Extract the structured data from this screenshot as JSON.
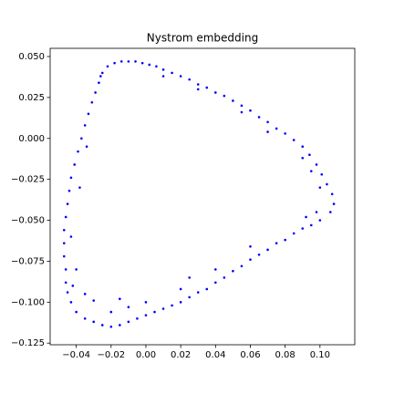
{
  "chart_data": {
    "type": "scatter",
    "title": "Nystrom embedding",
    "color": "#0000ff",
    "xlim": [
      -0.055,
      0.12
    ],
    "ylim": [
      -0.126,
      0.055
    ],
    "xticks": [
      {
        "value": -0.04,
        "label": "−0.04"
      },
      {
        "value": -0.02,
        "label": "−0.02"
      },
      {
        "value": 0,
        "label": "0.00"
      },
      {
        "value": 0.02,
        "label": "0.02"
      },
      {
        "value": 0.04,
        "label": "0.04"
      },
      {
        "value": 0.06,
        "label": "0.06"
      },
      {
        "value": 0.08,
        "label": "0.08"
      },
      {
        "value": 0.1,
        "label": "0.10"
      }
    ],
    "yticks": [
      {
        "value": 0.05,
        "label": "0.050"
      },
      {
        "value": 0.025,
        "label": "0.025"
      },
      {
        "value": 0,
        "label": "0.000"
      },
      {
        "value": -0.025,
        "label": "−0.025"
      },
      {
        "value": -0.05,
        "label": "−0.050"
      },
      {
        "value": -0.075,
        "label": "−0.075"
      },
      {
        "value": -0.1,
        "label": "−0.100"
      },
      {
        "value": -0.125,
        "label": "−0.125"
      }
    ],
    "x": [
      -0.025,
      -0.022,
      -0.018,
      -0.014,
      -0.01,
      -0.006,
      -0.002,
      0.002,
      0.006,
      0.01,
      0.015,
      0.02,
      0.025,
      0.03,
      0.035,
      0.04,
      0.045,
      0.05,
      0.055,
      0.06,
      0.065,
      0.07,
      0.075,
      0.08,
      0.085,
      0.09,
      0.094,
      0.098,
      0.101,
      0.104,
      0.107,
      0.108,
      0.106,
      0.01,
      0.03,
      0.055,
      0.07,
      0.09,
      0.095,
      0.1,
      0.098,
      0.092,
      0.1,
      0.095,
      0.09,
      0.085,
      0.08,
      0.075,
      0.07,
      0.065,
      0.06,
      0.055,
      0.05,
      0.045,
      0.04,
      0.035,
      0.03,
      0.025,
      0.02,
      0.015,
      0.01,
      0.005,
      0.0,
      -0.005,
      -0.01,
      -0.015,
      -0.02,
      -0.025,
      -0.03,
      -0.035,
      0.06,
      0.04,
      0.02,
      0.0,
      -0.01,
      -0.02,
      -0.03,
      -0.035,
      0.025,
      -0.015,
      -0.04,
      -0.043,
      -0.045,
      -0.046,
      -0.046,
      -0.047,
      -0.047,
      -0.047,
      -0.046,
      -0.045,
      -0.044,
      -0.043,
      -0.041,
      -0.039,
      -0.037,
      -0.035,
      -0.033,
      -0.031,
      -0.029,
      -0.027,
      -0.026,
      -0.042,
      -0.04,
      -0.043,
      -0.038,
      -0.034
    ],
    "values": [
      0.04,
      0.044,
      0.046,
      0.047,
      0.047,
      0.047,
      0.046,
      0.045,
      0.044,
      0.042,
      0.04,
      0.038,
      0.036,
      0.033,
      0.031,
      0.028,
      0.026,
      0.023,
      0.02,
      0.017,
      0.013,
      0.01,
      0.006,
      0.003,
      -0.001,
      -0.005,
      -0.01,
      -0.016,
      -0.022,
      -0.028,
      -0.034,
      -0.04,
      -0.045,
      0.038,
      0.03,
      0.016,
      0.004,
      -0.012,
      -0.02,
      -0.03,
      -0.045,
      -0.048,
      -0.05,
      -0.053,
      -0.055,
      -0.058,
      -0.062,
      -0.064,
      -0.068,
      -0.071,
      -0.074,
      -0.078,
      -0.081,
      -0.085,
      -0.088,
      -0.092,
      -0.094,
      -0.097,
      -0.1,
      -0.102,
      -0.104,
      -0.106,
      -0.108,
      -0.11,
      -0.112,
      -0.114,
      -0.115,
      -0.114,
      -0.112,
      -0.11,
      -0.066,
      -0.08,
      -0.092,
      -0.1,
      -0.103,
      -0.106,
      -0.099,
      -0.095,
      -0.085,
      -0.098,
      -0.106,
      -0.1,
      -0.094,
      -0.088,
      -0.08,
      -0.072,
      -0.064,
      -0.056,
      -0.048,
      -0.04,
      -0.032,
      -0.024,
      -0.016,
      -0.008,
      0.0,
      0.008,
      0.015,
      0.022,
      0.028,
      0.034,
      0.038,
      -0.09,
      -0.08,
      -0.06,
      -0.03,
      -0.005
    ]
  }
}
